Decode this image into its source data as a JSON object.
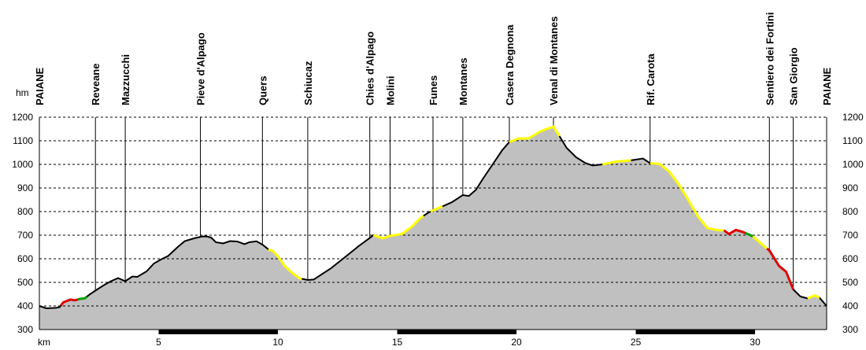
{
  "chart_data": {
    "type": "area",
    "title": "",
    "xlabel": "km",
    "ylabel": "hm",
    "xlim": [
      0,
      33
    ],
    "ylim": [
      300,
      1200
    ],
    "yticks": [
      300,
      400,
      500,
      600,
      700,
      800,
      900,
      1000,
      1100,
      1200
    ],
    "xticks": [
      5,
      10,
      15,
      20,
      25,
      30
    ],
    "grid": true,
    "colors": {
      "fill": "#c0c0c0",
      "profile": "#000000",
      "easy": "#ffff00",
      "hard": "#e00000",
      "green": "#00a000"
    },
    "waypoints": [
      {
        "name": "PAIANE",
        "km": 0.0
      },
      {
        "name": "Reveane",
        "km": 2.35
      },
      {
        "name": "Mazzucchi",
        "km": 3.6
      },
      {
        "name": "Pieve d'Alpago",
        "km": 6.75
      },
      {
        "name": "Quers",
        "km": 9.35
      },
      {
        "name": "Schiucaz",
        "km": 11.25
      },
      {
        "name": "Chies d'Alpago",
        "km": 13.85
      },
      {
        "name": "Molini",
        "km": 14.7
      },
      {
        "name": "Funes",
        "km": 16.5
      },
      {
        "name": "Montanes",
        "km": 17.75
      },
      {
        "name": "Casera Degnona",
        "km": 19.7
      },
      {
        "name": "Venal di Montanes",
        "km": 21.55
      },
      {
        "name": "Rif. Carota",
        "km": 25.6
      },
      {
        "name": "Sentiero dei Fortini",
        "km": 30.6
      },
      {
        "name": "San Giorgio",
        "km": 31.6
      },
      {
        "name": "PAIANE",
        "km": 33.0
      }
    ],
    "profile": [
      [
        0.0,
        400
      ],
      [
        0.3,
        390
      ],
      [
        0.7,
        392
      ],
      [
        0.85,
        395
      ],
      [
        1.0,
        415
      ],
      [
        1.3,
        427
      ],
      [
        1.5,
        424
      ],
      [
        1.7,
        430
      ],
      [
        1.9,
        432
      ],
      [
        2.1,
        448
      ],
      [
        2.35,
        465
      ],
      [
        2.7,
        488
      ],
      [
        3.0,
        505
      ],
      [
        3.3,
        518
      ],
      [
        3.6,
        505
      ],
      [
        3.9,
        525
      ],
      [
        4.1,
        523
      ],
      [
        4.5,
        547
      ],
      [
        4.8,
        580
      ],
      [
        5.1,
        597
      ],
      [
        5.4,
        612
      ],
      [
        5.8,
        650
      ],
      [
        6.1,
        675
      ],
      [
        6.5,
        687
      ],
      [
        6.8,
        694
      ],
      [
        7.0,
        695
      ],
      [
        7.2,
        690
      ],
      [
        7.4,
        670
      ],
      [
        7.7,
        665
      ],
      [
        8.0,
        675
      ],
      [
        8.3,
        673
      ],
      [
        8.6,
        662
      ],
      [
        8.8,
        670
      ],
      [
        9.1,
        674
      ],
      [
        9.35,
        660
      ],
      [
        9.6,
        640
      ],
      [
        9.8,
        632
      ],
      [
        10.0,
        610
      ],
      [
        10.3,
        568
      ],
      [
        10.6,
        540
      ],
      [
        10.9,
        517
      ],
      [
        11.25,
        510
      ],
      [
        11.5,
        512
      ],
      [
        11.8,
        532
      ],
      [
        12.2,
        558
      ],
      [
        12.6,
        590
      ],
      [
        13.0,
        622
      ],
      [
        13.4,
        655
      ],
      [
        13.85,
        688
      ],
      [
        14.0,
        700
      ],
      [
        14.4,
        687
      ],
      [
        14.7,
        697
      ],
      [
        15.2,
        705
      ],
      [
        15.6,
        735
      ],
      [
        16.0,
        775
      ],
      [
        16.3,
        795
      ],
      [
        16.6,
        810
      ],
      [
        16.9,
        822
      ],
      [
        17.3,
        840
      ],
      [
        17.75,
        870
      ],
      [
        18.0,
        866
      ],
      [
        18.3,
        892
      ],
      [
        18.6,
        940
      ],
      [
        19.0,
        1000
      ],
      [
        19.4,
        1060
      ],
      [
        19.7,
        1095
      ],
      [
        20.1,
        1110
      ],
      [
        20.5,
        1110
      ],
      [
        21.0,
        1140
      ],
      [
        21.55,
        1160
      ],
      [
        21.8,
        1120
      ],
      [
        22.1,
        1070
      ],
      [
        22.5,
        1030
      ],
      [
        22.9,
        1005
      ],
      [
        23.2,
        995
      ],
      [
        23.6,
        1000
      ],
      [
        24.2,
        1012
      ],
      [
        24.8,
        1017
      ],
      [
        25.3,
        1025
      ],
      [
        25.6,
        1005
      ],
      [
        26.0,
        1002
      ],
      [
        26.4,
        970
      ],
      [
        26.8,
        915
      ],
      [
        27.2,
        850
      ],
      [
        27.6,
        780
      ],
      [
        28.0,
        730
      ],
      [
        28.4,
        722
      ],
      [
        28.7,
        720
      ],
      [
        28.9,
        705
      ],
      [
        29.2,
        722
      ],
      [
        29.5,
        713
      ],
      [
        29.8,
        700
      ],
      [
        30.0,
        688
      ],
      [
        30.3,
        660
      ],
      [
        30.6,
        635
      ],
      [
        31.0,
        570
      ],
      [
        31.3,
        545
      ],
      [
        31.6,
        470
      ],
      [
        31.9,
        440
      ],
      [
        32.2,
        432
      ],
      [
        32.5,
        445
      ],
      [
        32.7,
        435
      ],
      [
        33.0,
        400
      ]
    ],
    "segments": [
      {
        "from": 0.9,
        "to": 1.6,
        "difficulty": "hard"
      },
      {
        "from": 1.6,
        "to": 2.0,
        "difficulty": "green"
      },
      {
        "from": 9.6,
        "to": 11.0,
        "difficulty": "easy"
      },
      {
        "from": 14.0,
        "to": 16.1,
        "difficulty": "easy"
      },
      {
        "from": 16.4,
        "to": 16.9,
        "difficulty": "easy"
      },
      {
        "from": 19.7,
        "to": 21.8,
        "difficulty": "easy"
      },
      {
        "from": 23.6,
        "to": 24.8,
        "difficulty": "easy"
      },
      {
        "from": 25.6,
        "to": 28.7,
        "difficulty": "easy"
      },
      {
        "from": 28.7,
        "to": 29.6,
        "difficulty": "hard"
      },
      {
        "from": 29.6,
        "to": 29.9,
        "difficulty": "green"
      },
      {
        "from": 29.9,
        "to": 30.5,
        "difficulty": "easy"
      },
      {
        "from": 30.5,
        "to": 31.6,
        "difficulty": "hard"
      },
      {
        "from": 32.2,
        "to": 32.7,
        "difficulty": "easy"
      }
    ],
    "scale_bands": [
      {
        "from": 5,
        "to": 10
      },
      {
        "from": 15,
        "to": 20
      },
      {
        "from": 25,
        "to": 30
      }
    ]
  }
}
